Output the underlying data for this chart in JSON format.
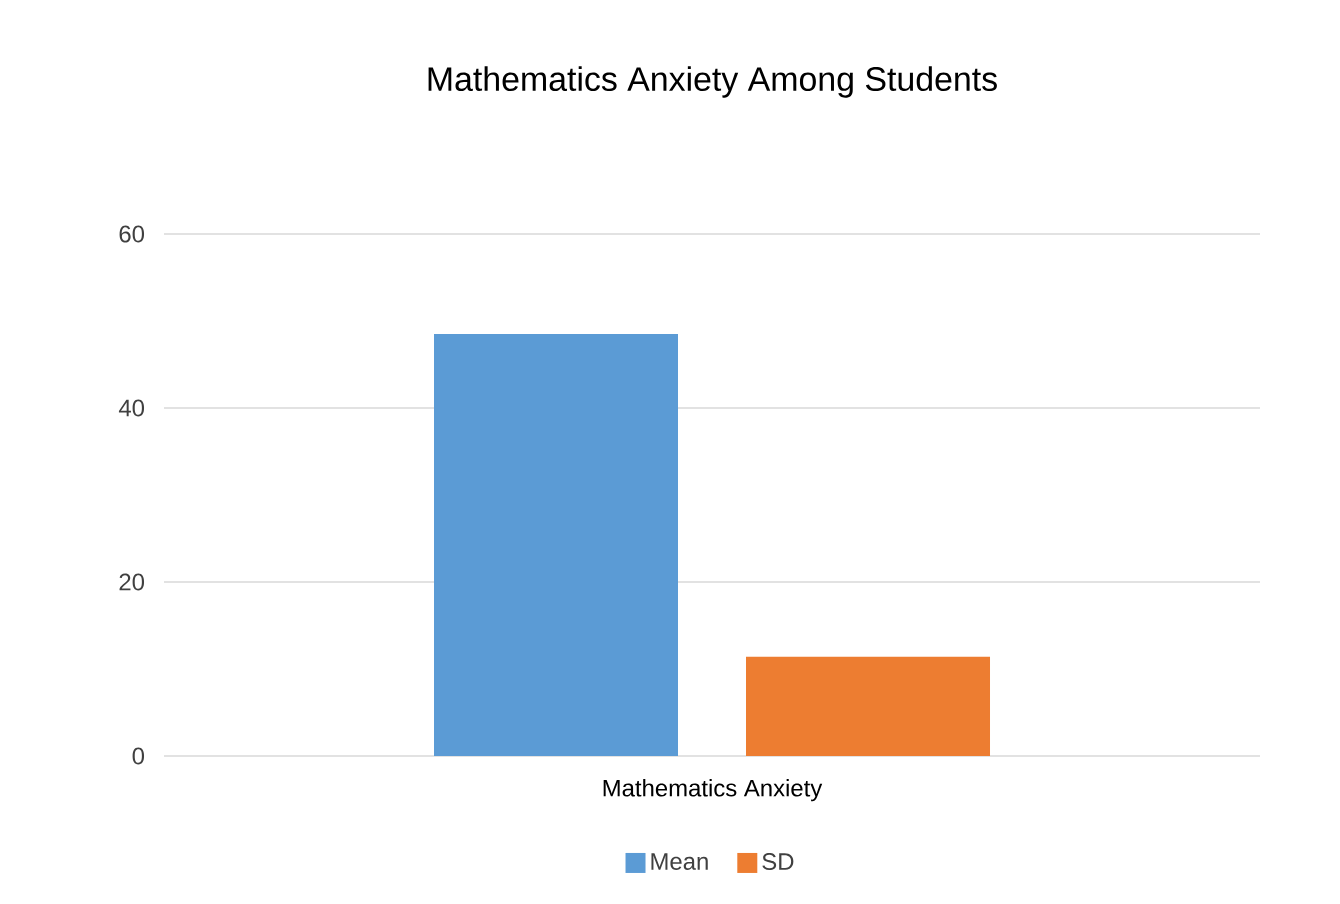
{
  "chart_data": {
    "type": "bar",
    "title": "Mathematics Anxiety Among Students",
    "categories": [
      "Mathematics Anxiety"
    ],
    "series": [
      {
        "name": "Mean",
        "color": "#5b9bd5",
        "values": [
          48.5
        ]
      },
      {
        "name": "SD",
        "color": "#ed7d31",
        "values": [
          11.4
        ]
      }
    ],
    "ylim": [
      0,
      60
    ],
    "yticks": [
      0,
      20,
      40,
      60
    ],
    "grid": "y",
    "legend": "bottom"
  }
}
